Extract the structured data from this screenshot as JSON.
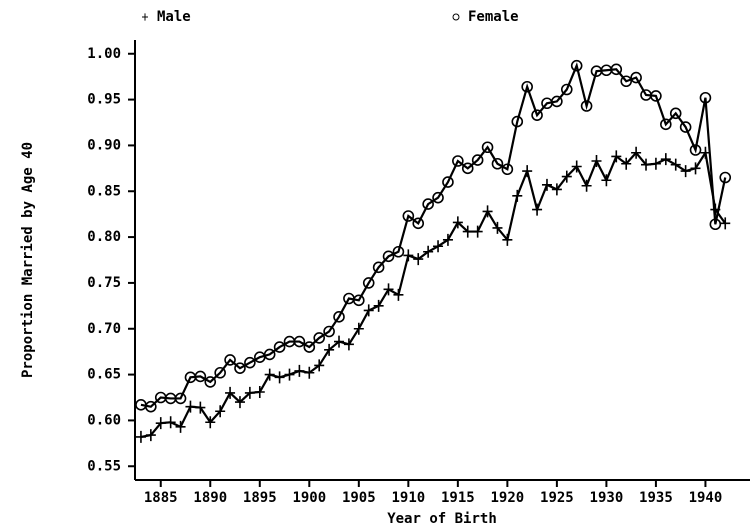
{
  "chart_data": {
    "type": "line",
    "x_label": "Year of Birth",
    "y_label": "Proportion Married by Age 40",
    "x": [
      1883,
      1884,
      1885,
      1886,
      1887,
      1888,
      1889,
      1890,
      1891,
      1892,
      1893,
      1894,
      1895,
      1896,
      1897,
      1898,
      1899,
      1900,
      1901,
      1902,
      1903,
      1904,
      1905,
      1906,
      1907,
      1908,
      1909,
      1910,
      1911,
      1912,
      1913,
      1914,
      1915,
      1916,
      1917,
      1918,
      1919,
      1920,
      1921,
      1922,
      1923,
      1924,
      1925,
      1926,
      1927,
      1928,
      1929,
      1930,
      1931,
      1932,
      1933,
      1934,
      1935,
      1936,
      1937,
      1938,
      1939,
      1940,
      1941,
      1942
    ],
    "series": [
      {
        "name": "Male",
        "color": "#000000",
        "marker": "plus",
        "values": [
          0.582,
          0.584,
          0.597,
          0.598,
          0.593,
          0.615,
          0.614,
          0.598,
          0.61,
          0.63,
          0.62,
          0.63,
          0.631,
          0.65,
          0.647,
          0.65,
          0.654,
          0.652,
          0.66,
          0.677,
          0.686,
          0.683,
          0.7,
          0.72,
          0.725,
          0.743,
          0.737,
          0.78,
          0.776,
          0.784,
          0.79,
          0.797,
          0.816,
          0.806,
          0.806,
          0.828,
          0.81,
          0.797,
          0.845,
          0.872,
          0.83,
          0.857,
          0.852,
          0.866,
          0.877,
          0.856,
          0.883,
          0.862,
          0.888,
          0.88,
          0.892,
          0.879,
          0.88,
          0.885,
          0.879,
          0.872,
          0.875,
          0.892,
          0.83,
          0.815
        ]
      },
      {
        "name": "Female",
        "color": "#000000",
        "marker": "circle",
        "values": [
          0.617,
          0.615,
          0.625,
          0.624,
          0.624,
          0.647,
          0.648,
          0.642,
          0.652,
          0.666,
          0.657,
          0.663,
          0.669,
          0.672,
          0.68,
          0.686,
          0.686,
          0.68,
          0.69,
          0.697,
          0.713,
          0.733,
          0.731,
          0.75,
          0.767,
          0.779,
          0.784,
          0.823,
          0.815,
          0.836,
          0.843,
          0.86,
          0.883,
          0.875,
          0.884,
          0.898,
          0.88,
          0.874,
          0.926,
          0.964,
          0.933,
          0.946,
          0.948,
          0.961,
          0.987,
          0.943,
          0.981,
          0.982,
          0.983,
          0.97,
          0.974,
          0.955,
          0.954,
          0.923,
          0.935,
          0.92,
          0.895,
          0.952,
          0.814,
          0.865
        ]
      }
    ],
    "xlim": [
      1882.4,
      1944.5
    ],
    "xticks": [
      1885,
      1890,
      1895,
      1900,
      1905,
      1910,
      1915,
      1920,
      1925,
      1930,
      1935,
      1940
    ],
    "ylim": [
      0.535,
      1.015
    ],
    "yticks": [
      0.55,
      {
        "value": 0.6,
        "label": "0.60"
      },
      0.65,
      {
        "value": 0.7,
        "label": "0.70"
      },
      0.75,
      {
        "value": 0.8,
        "label": "0.80"
      },
      0.85,
      {
        "value": 0.9,
        "label": "0.90"
      },
      0.95,
      {
        "value": 1,
        "label": "1.00"
      }
    ],
    "grid": false,
    "legend": "top"
  }
}
